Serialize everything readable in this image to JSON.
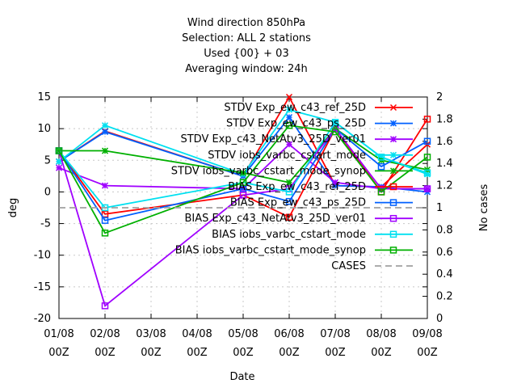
{
  "chart_data": {
    "type": "line",
    "title_lines": [
      "Wind direction 850hPa",
      "Selection: ALL      2 stations",
      "Used {00} + 03",
      "Averaging window: 24h"
    ],
    "xlabel": "Date",
    "ylabel": "deg",
    "y2label": "No cases",
    "x_ticks": [
      {
        "line1": "01/08",
        "line2": "00Z"
      },
      {
        "line1": "02/08",
        "line2": "00Z"
      },
      {
        "line1": "03/08",
        "line2": "00Z"
      },
      {
        "line1": "04/08",
        "line2": "00Z"
      },
      {
        "line1": "05/08",
        "line2": "00Z"
      },
      {
        "line1": "06/08",
        "line2": "00Z"
      },
      {
        "line1": "07/08",
        "line2": "00Z"
      },
      {
        "line1": "08/08",
        "line2": "00Z"
      },
      {
        "line1": "09/08",
        "line2": "00Z"
      }
    ],
    "ylim": [
      -20,
      15
    ],
    "y_ticks": [
      "-20",
      "-15",
      "-10",
      "-5",
      "0",
      "5",
      "10",
      "15"
    ],
    "y2lim": [
      0,
      2
    ],
    "y2_ticks": [
      "0",
      "0.2",
      "0.4",
      "0.6",
      "0.8",
      "1",
      "1.2",
      "1.4",
      "1.6",
      "1.8",
      "2"
    ],
    "grid": true,
    "legend_position": "top-right",
    "series": [
      {
        "name": "STDV Exp_ew_c43_ref_25D",
        "color": "#ff0000",
        "marker": "x",
        "axis": "y",
        "points": [
          [
            0,
            4.8
          ],
          [
            1,
            9.6
          ],
          [
            4,
            2.5
          ],
          [
            5,
            15.0
          ],
          [
            6,
            1.0
          ],
          [
            7,
            0.8
          ],
          [
            8,
            7.5
          ]
        ]
      },
      {
        "name": "STDV Exp_ew_c43_ps_25D",
        "color": "#0060ff",
        "marker": "star",
        "axis": "y",
        "points": [
          [
            0,
            4.8
          ],
          [
            1,
            9.5
          ],
          [
            4,
            2.5
          ],
          [
            5,
            11.8
          ],
          [
            6,
            1.0
          ],
          [
            7,
            0.8
          ],
          [
            8,
            0.0
          ]
        ]
      },
      {
        "name": "STDV Exp_c43_NetAtv3_25D_ver01",
        "color": "#a000ff",
        "marker": "star",
        "axis": "y",
        "points": [
          [
            0,
            3.8
          ],
          [
            1,
            1.0
          ],
          [
            4,
            0.5
          ],
          [
            5,
            7.5
          ],
          [
            6,
            1.5
          ],
          [
            7,
            0.5
          ],
          [
            8,
            0.5
          ]
        ]
      },
      {
        "name": "STDV iobs_varbc_cstart_mode",
        "color": "#00e0f0",
        "marker": "star",
        "axis": "y",
        "points": [
          [
            0,
            4.8
          ],
          [
            1,
            10.5
          ],
          [
            4,
            2.8
          ],
          [
            5,
            13.0
          ],
          [
            6,
            11.0
          ],
          [
            7,
            5.5
          ],
          [
            8,
            2.8
          ]
        ]
      },
      {
        "name": "STDV iobs_varbc_cstart_mode_synop",
        "color": "#00b000",
        "marker": "star",
        "axis": "y",
        "points": [
          [
            0,
            6.5
          ],
          [
            1,
            6.5
          ],
          [
            4,
            3.0
          ],
          [
            5,
            1.5
          ],
          [
            6,
            10.0
          ],
          [
            7,
            5.0
          ],
          [
            8,
            3.5
          ]
        ]
      },
      {
        "name": "BIAS Exp_ew_c43_ref_25D",
        "color": "#ff0000",
        "marker": "square",
        "axis": "y",
        "points": [
          [
            0,
            6.5
          ],
          [
            1,
            -3.5
          ],
          [
            4,
            -0.5
          ],
          [
            5,
            -4.0
          ],
          [
            6,
            10.0
          ],
          [
            7,
            0.0
          ],
          [
            8,
            11.5
          ]
        ]
      },
      {
        "name": "BIAS Exp_ew_c43_ps_25D",
        "color": "#0060ff",
        "marker": "square",
        "axis": "y",
        "points": [
          [
            0,
            6.5
          ],
          [
            1,
            -4.5
          ],
          [
            4,
            0.5
          ],
          [
            5,
            -1.5
          ],
          [
            6,
            10.0
          ],
          [
            7,
            4.0
          ],
          [
            8,
            8.0
          ]
        ]
      },
      {
        "name": "BIAS Exp_c43_NetAtv3_25D_ver01",
        "color": "#a000ff",
        "marker": "square",
        "axis": "y",
        "points": [
          [
            0,
            6.5
          ],
          [
            1,
            -18.0
          ],
          [
            4,
            -0.5
          ],
          [
            5,
            0.5
          ],
          [
            6,
            10.0
          ],
          [
            7,
            0.5
          ],
          [
            8,
            0.5
          ]
        ]
      },
      {
        "name": "BIAS iobs_varbc_cstart_mode",
        "color": "#00e0f0",
        "marker": "square",
        "axis": "y",
        "points": [
          [
            0,
            6.5
          ],
          [
            1,
            -2.5
          ],
          [
            4,
            1.5
          ],
          [
            5,
            0.0
          ],
          [
            6,
            11.0
          ],
          [
            7,
            5.5
          ],
          [
            8,
            3.0
          ]
        ]
      },
      {
        "name": "BIAS iobs_varbc_cstart_mode_synop",
        "color": "#00b000",
        "marker": "square",
        "axis": "y",
        "points": [
          [
            0,
            6.5
          ],
          [
            1,
            -6.5
          ],
          [
            4,
            1.5
          ],
          [
            5,
            10.5
          ],
          [
            6,
            9.5
          ],
          [
            7,
            0.0
          ],
          [
            8,
            5.5
          ]
        ]
      },
      {
        "name": "CASES",
        "color": "#a0a0a0",
        "marker": "none",
        "dash": true,
        "axis": "y2",
        "points": [
          [
            0,
            1.0
          ],
          [
            8,
            1.0
          ]
        ]
      }
    ]
  }
}
